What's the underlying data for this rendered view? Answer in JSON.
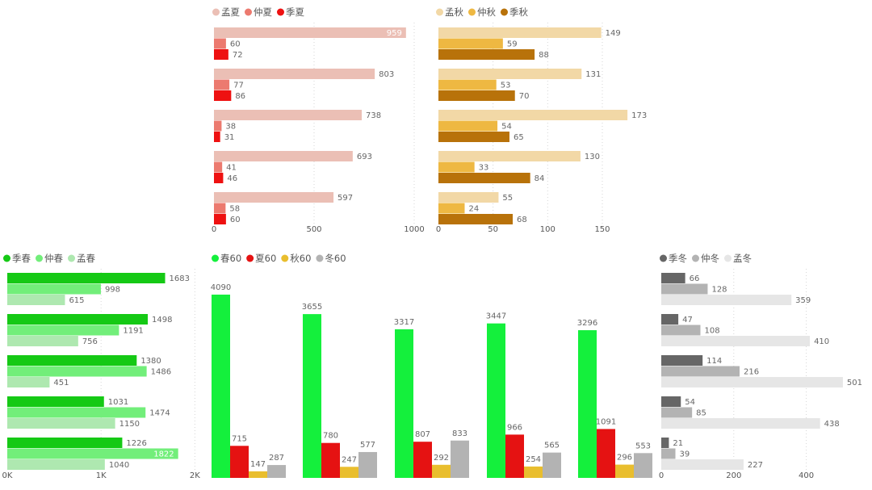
{
  "chart_data": [
    {
      "id": "summer",
      "type": "bar",
      "orientation": "horizontal",
      "groups": 5,
      "series": [
        {
          "name": "孟夏",
          "color": "#EBBFB5",
          "values": [
            959,
            803,
            738,
            693,
            597
          ]
        },
        {
          "name": "仲夏",
          "color": "#EC7A6F",
          "values": [
            60,
            77,
            38,
            41,
            58
          ]
        },
        {
          "name": "季夏",
          "color": "#EE1111",
          "values": [
            72,
            86,
            31,
            46,
            60
          ]
        }
      ],
      "xlim": [
        0,
        1000
      ],
      "ticks": [
        "0",
        "500",
        "1000"
      ],
      "tick_values": [
        0,
        500,
        1000
      ],
      "grid": true,
      "legend": "top-left"
    },
    {
      "id": "autumn",
      "type": "bar",
      "orientation": "horizontal",
      "groups": 5,
      "series": [
        {
          "name": "孟秋",
          "color": "#F2D8A6",
          "values": [
            149,
            131,
            173,
            130,
            55
          ]
        },
        {
          "name": "仲秋",
          "color": "#EEB842",
          "values": [
            59,
            53,
            54,
            33,
            24
          ]
        },
        {
          "name": "季秋",
          "color": "#B8720A",
          "values": [
            88,
            70,
            65,
            84,
            68
          ]
        }
      ],
      "xlim": [
        0,
        200
      ],
      "ticks": [
        "0",
        "50",
        "100",
        "150"
      ],
      "tick_values": [
        0,
        50,
        100,
        150
      ],
      "grid": true,
      "legend": "top-left"
    },
    {
      "id": "spring",
      "type": "bar",
      "orientation": "horizontal",
      "groups": 5,
      "series": [
        {
          "name": "季春",
          "color": "#15C915",
          "values": [
            1683,
            1498,
            1380,
            1031,
            1226
          ]
        },
        {
          "name": "仲春",
          "color": "#72EE7A",
          "values": [
            998,
            1191,
            1486,
            1474,
            1822
          ]
        },
        {
          "name": "孟春",
          "color": "#AEE8B0",
          "values": [
            615,
            756,
            451,
            1150,
            1040
          ]
        }
      ],
      "xlim": [
        0,
        2000
      ],
      "ticks": [
        "0K",
        "1K",
        "2K"
      ],
      "tick_values": [
        0,
        1000,
        2000
      ],
      "grid": true,
      "legend": "top-left"
    },
    {
      "id": "year",
      "type": "bar",
      "orientation": "vertical",
      "groups": 5,
      "series": [
        {
          "name": "春60",
          "color": "#14F03C",
          "values": [
            4090,
            3655,
            3317,
            3447,
            3296
          ]
        },
        {
          "name": "夏60",
          "color": "#E51212",
          "values": [
            715,
            780,
            807,
            966,
            1091
          ]
        },
        {
          "name": "秋60",
          "color": "#E9BE2E",
          "values": [
            147,
            247,
            292,
            254,
            296
          ]
        },
        {
          "name": "冬60",
          "color": "#B3B3B3",
          "values": [
            287,
            577,
            833,
            565,
            553
          ]
        }
      ],
      "ylim": [
        0,
        4500
      ],
      "grid": false,
      "legend": "top-left"
    },
    {
      "id": "winter",
      "type": "bar",
      "orientation": "horizontal",
      "groups": 5,
      "series": [
        {
          "name": "季冬",
          "color": "#666666",
          "values": [
            66,
            47,
            114,
            54,
            21
          ]
        },
        {
          "name": "仲冬",
          "color": "#B3B3B3",
          "values": [
            128,
            108,
            216,
            85,
            39
          ]
        },
        {
          "name": "孟冬",
          "color": "#E6E6E6",
          "values": [
            359,
            410,
            501,
            438,
            227
          ]
        }
      ],
      "xlim": [
        0,
        520
      ],
      "ticks": [
        "0",
        "200",
        "400"
      ],
      "tick_values": [
        0,
        200,
        400
      ],
      "grid": true,
      "legend": "top-left"
    }
  ]
}
